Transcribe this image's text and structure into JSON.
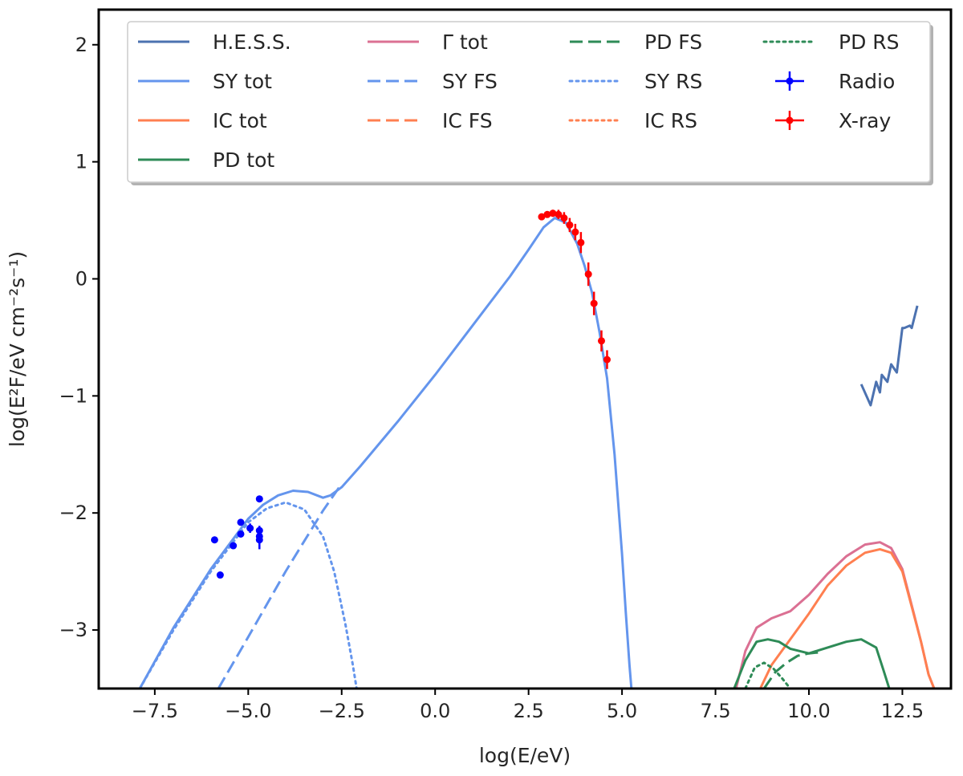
{
  "chart_data": {
    "type": "line",
    "xlabel": "log(E/eV)",
    "ylabel": "log(E²F/eV cm⁻²s⁻¹)",
    "xlim": [
      -9.0,
      13.8
    ],
    "ylim": [
      -3.5,
      2.3
    ],
    "xticks": [
      -7.5,
      -5.0,
      -2.5,
      0.0,
      2.5,
      5.0,
      7.5,
      10.0,
      12.5
    ],
    "xtick_labels": [
      "−7.5",
      "−5.0",
      "−2.5",
      "0.0",
      "2.5",
      "5.0",
      "7.5",
      "10.0",
      "12.5"
    ],
    "yticks": [
      -3,
      -2,
      -1,
      0,
      1,
      2
    ],
    "ytick_labels": [
      "−3",
      "−2",
      "−1",
      "0",
      "1",
      "2"
    ],
    "grid": false,
    "legend_position": "top",
    "colors": {
      "hess": "#4c72b0",
      "sy": "#6495ed",
      "ic": "#ff7f50",
      "pd": "#2e8b57",
      "gamma": "#db7093",
      "radio": "#0000ff",
      "xray": "#ff0000"
    },
    "legend": [
      {
        "label": "H.E.S.S.",
        "color": "#4c72b0",
        "style": "solid",
        "marker": false
      },
      {
        "label": "SY tot",
        "color": "#6495ed",
        "style": "solid",
        "marker": false
      },
      {
        "label": "IC tot",
        "color": "#ff7f50",
        "style": "solid",
        "marker": false
      },
      {
        "label": "PD tot",
        "color": "#2e8b57",
        "style": "solid",
        "marker": false
      },
      {
        "label": "Γ tot",
        "color": "#db7093",
        "style": "solid",
        "marker": false
      },
      {
        "label": "SY FS",
        "color": "#6495ed",
        "style": "dashed",
        "marker": false
      },
      {
        "label": "IC FS",
        "color": "#ff7f50",
        "style": "dashed",
        "marker": false
      },
      {
        "label": "PD FS",
        "color": "#2e8b57",
        "style": "dashed",
        "marker": false
      },
      {
        "label": "SY RS",
        "color": "#6495ed",
        "style": "dotted",
        "marker": false
      },
      {
        "label": "IC RS",
        "color": "#ff7f50",
        "style": "dotted",
        "marker": false
      },
      {
        "label": "PD RS",
        "color": "#2e8b57",
        "style": "dotted",
        "marker": false
      },
      {
        "label": "Radio",
        "color": "#0000ff",
        "style": "none",
        "marker": true
      },
      {
        "label": "X-ray",
        "color": "#ff0000",
        "style": "none",
        "marker": true
      }
    ],
    "series": [
      {
        "name": "SY tot",
        "color": "#6495ed",
        "style": "solid",
        "x": [
          -7.9,
          -7.0,
          -6.0,
          -5.0,
          -4.6,
          -4.2,
          -3.8,
          -3.4,
          -3.0,
          -2.8,
          -2.5,
          -2.0,
          -1.0,
          0.0,
          1.0,
          2.0,
          2.5,
          2.9,
          3.2,
          3.5,
          3.8,
          4.0,
          4.2,
          4.4,
          4.6,
          4.8,
          5.0,
          5.1,
          5.2,
          5.25
        ],
        "y": [
          -3.5,
          -2.98,
          -2.48,
          -2.05,
          -1.93,
          -1.85,
          -1.81,
          -1.82,
          -1.87,
          -1.85,
          -1.78,
          -1.6,
          -1.22,
          -0.82,
          -0.4,
          0.02,
          0.25,
          0.44,
          0.52,
          0.48,
          0.3,
          0.11,
          -0.12,
          -0.46,
          -0.85,
          -1.5,
          -2.35,
          -2.85,
          -3.3,
          -3.5
        ]
      },
      {
        "name": "SY FS",
        "color": "#6495ed",
        "style": "dashed",
        "x": [
          -5.8,
          -5.0,
          -4.0,
          -3.0,
          -2.5
        ],
        "y": [
          -3.5,
          -3.06,
          -2.5,
          -1.98,
          -1.75
        ]
      },
      {
        "name": "SY RS",
        "color": "#6495ed",
        "style": "dotted",
        "x": [
          -7.9,
          -7.0,
          -6.0,
          -5.0,
          -4.5,
          -4.0,
          -3.5,
          -3.0,
          -2.7,
          -2.4,
          -2.2,
          -2.1
        ],
        "y": [
          -3.5,
          -3.0,
          -2.5,
          -2.08,
          -1.96,
          -1.91,
          -1.97,
          -2.2,
          -2.5,
          -2.95,
          -3.3,
          -3.5
        ]
      },
      {
        "name": "H.E.S.S.",
        "color": "#4c72b0",
        "style": "solid",
        "x": [
          11.4,
          11.65,
          11.8,
          11.9,
          11.95,
          12.1,
          12.2,
          12.35,
          12.5,
          12.55,
          12.7,
          12.75,
          12.9
        ],
        "y": [
          -0.9,
          -1.08,
          -0.88,
          -0.97,
          -0.82,
          -0.88,
          -0.73,
          -0.8,
          -0.42,
          -0.42,
          -0.4,
          -0.42,
          -0.23
        ]
      },
      {
        "name": "Γ tot",
        "color": "#db7093",
        "style": "solid",
        "x": [
          8.05,
          8.3,
          8.6,
          9.0,
          9.5,
          10.0,
          10.5,
          11.0,
          11.5,
          11.9,
          12.2,
          12.5,
          12.8,
          13.0,
          13.2,
          13.35
        ],
        "y": [
          -3.5,
          -3.18,
          -2.98,
          -2.9,
          -2.84,
          -2.7,
          -2.52,
          -2.37,
          -2.27,
          -2.25,
          -2.3,
          -2.48,
          -2.85,
          -3.1,
          -3.38,
          -3.5
        ]
      },
      {
        "name": "IC tot",
        "color": "#ff7f50",
        "style": "solid",
        "x": [
          8.7,
          9.0,
          9.5,
          10.0,
          10.5,
          11.0,
          11.5,
          11.9,
          12.2,
          12.5,
          12.8,
          13.0,
          13.2,
          13.35
        ],
        "y": [
          -3.5,
          -3.3,
          -3.08,
          -2.86,
          -2.62,
          -2.45,
          -2.34,
          -2.31,
          -2.34,
          -2.5,
          -2.86,
          -3.1,
          -3.38,
          -3.5
        ]
      },
      {
        "name": "PD tot",
        "color": "#2e8b57",
        "style": "solid",
        "x": [
          8.0,
          8.3,
          8.6,
          8.9,
          9.2,
          9.5,
          10.0,
          10.5,
          11.0,
          11.4,
          11.8,
          12.0,
          12.15
        ],
        "y": [
          -3.5,
          -3.26,
          -3.1,
          -3.08,
          -3.1,
          -3.16,
          -3.2,
          -3.15,
          -3.1,
          -3.08,
          -3.15,
          -3.35,
          -3.5
        ]
      },
      {
        "name": "PD FS",
        "color": "#2e8b57",
        "style": "dashed",
        "x": [
          8.8,
          9.1,
          9.4,
          9.7,
          10.0,
          10.3
        ],
        "y": [
          -3.5,
          -3.36,
          -3.28,
          -3.22,
          -3.2,
          -3.19
        ]
      },
      {
        "name": "PD RS",
        "color": "#2e8b57",
        "style": "dotted",
        "x": [
          8.3,
          8.55,
          8.8,
          9.05,
          9.3,
          9.5
        ],
        "y": [
          -3.5,
          -3.32,
          -3.28,
          -3.33,
          -3.42,
          -3.5
        ]
      }
    ],
    "points": [
      {
        "name": "Radio",
        "color": "#0000ff",
        "x": [
          -5.9,
          -5.75,
          -5.4,
          -5.2,
          -5.2,
          -4.95,
          -4.7,
          -4.7,
          -4.7,
          -4.7
        ],
        "y": [
          -2.23,
          -2.53,
          -2.28,
          -2.18,
          -2.08,
          -2.13,
          -1.88,
          -2.15,
          -2.2,
          -2.23
        ],
        "yerr": [
          0.0,
          0.0,
          0.0,
          0.0,
          0.0,
          0.04,
          0.0,
          0.04,
          0.05,
          0.08
        ]
      },
      {
        "name": "X-ray",
        "color": "#ff0000",
        "x": [
          2.85,
          3.0,
          3.15,
          3.3,
          3.45,
          3.6,
          3.75,
          3.9,
          4.1,
          4.25,
          4.45,
          4.6
        ],
        "y": [
          0.53,
          0.55,
          0.56,
          0.55,
          0.52,
          0.46,
          0.4,
          0.31,
          0.04,
          -0.21,
          -0.53,
          -0.69
        ],
        "yerr": [
          0.02,
          0.02,
          0.03,
          0.04,
          0.05,
          0.06,
          0.07,
          0.09,
          0.1,
          0.1,
          0.09,
          0.08
        ]
      }
    ]
  }
}
